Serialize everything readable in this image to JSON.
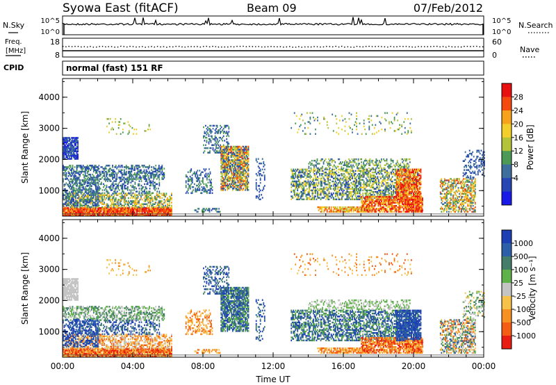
{
  "header": {
    "station": "Syowa East (fitACF)",
    "beam": "Beam 09",
    "date": "07/Feb/2012"
  },
  "nsky_panel": {
    "left_label": "N.Sky",
    "right_label": "N.Search",
    "ticks_left": [
      "10^5",
      "10^0"
    ],
    "ticks_right": [
      "10^5",
      "10^0"
    ]
  },
  "freq_panel": {
    "left_label_line1": "Freq.",
    "left_label_line2": "[MHz]",
    "right_label": "Nave",
    "ticks_left": [
      "18",
      "8"
    ],
    "ticks_right": [
      "60",
      "0"
    ]
  },
  "cpid_panel": {
    "label": "CPID",
    "text": "normal (fast) 151 RF"
  },
  "chart_data": [
    {
      "type": "heatmap",
      "name": "power",
      "x_range_hours": [
        0,
        24
      ],
      "y_range_km": [
        180,
        4600
      ],
      "ylabel": "Slant Range [km]",
      "yticks": [
        1000,
        2000,
        3000,
        4000
      ],
      "colorbar": {
        "label": "Power [dB]",
        "ticks": [
          "28",
          "24",
          "20",
          "16",
          "12",
          "8",
          "4"
        ],
        "colors": [
          "#e81010",
          "#f44a10",
          "#f6a21d",
          "#f2cf2a",
          "#b4c43a",
          "#4c9a55",
          "#3d6e9c",
          "#2646b4",
          "#1a1ae8"
        ]
      }
    },
    {
      "type": "heatmap",
      "name": "velocity",
      "x_range_hours": [
        0,
        24
      ],
      "y_range_km": [
        180,
        4600
      ],
      "ylabel": "Slant Range [km]",
      "yticks": [
        1000,
        2000,
        3000,
        4000
      ],
      "xticks": [
        "00:00",
        "04:00",
        "08:00",
        "12:00",
        "16:00",
        "20:00",
        "00:00"
      ],
      "xlabel": "Time UT",
      "colorbar": {
        "label": "Velocity [m s⁻¹]",
        "ticks": [
          "1000",
          "500",
          "100",
          "25",
          "-25",
          "-100",
          "-500",
          "-1000"
        ],
        "colors": [
          "#1d3fb4",
          "#2d5ea8",
          "#447e6a",
          "#5fb14a",
          "#c4c4c4",
          "#f6c24a",
          "#f59021",
          "#f45c14",
          "#e81c10"
        ]
      }
    }
  ]
}
